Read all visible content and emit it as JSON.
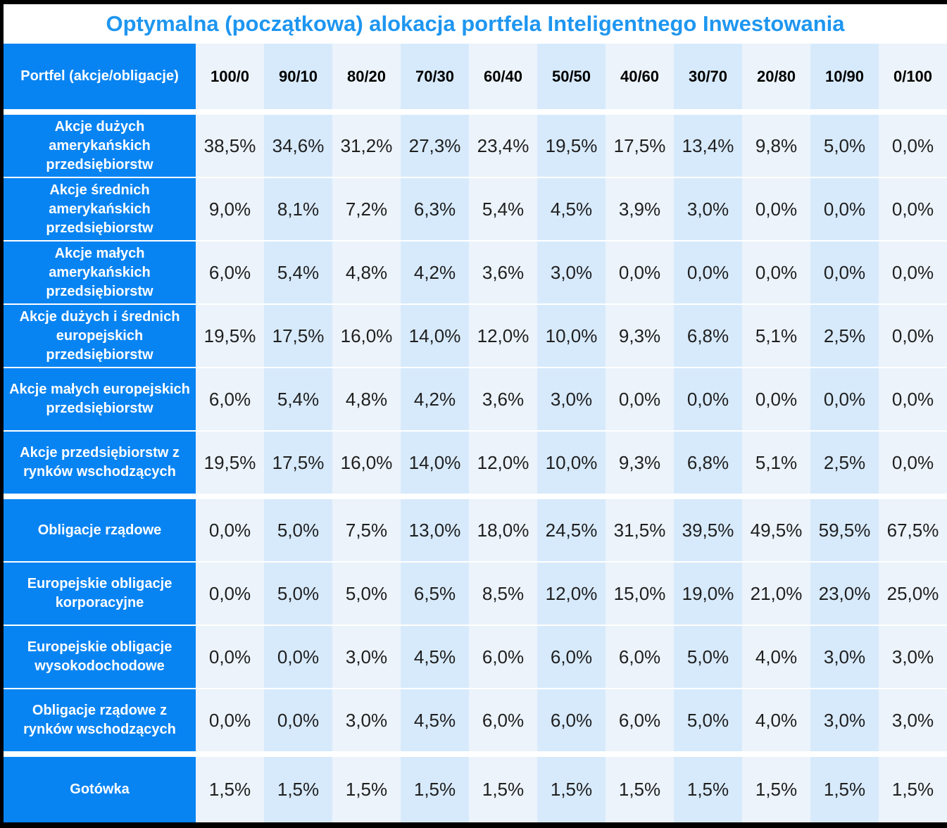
{
  "title": "Optymalna (początkowa) alokacja portfela Inteligentnego Inwestowania",
  "colors": {
    "title_text": "#1e96f0",
    "label_cell_bg": "#0884f2",
    "label_cell_text": "#ffffff",
    "column_light": "#ecf3fa",
    "column_blue": "#d7eafc",
    "value_text": "#1f1f1f",
    "border": "#000000"
  },
  "chart_data": {
    "type": "table",
    "title": "Optymalna (początkowa) alokacja portfela Inteligentnego Inwestowania",
    "corner_label": "Portfel (akcje/obligacje)",
    "columns": [
      "100/0",
      "90/10",
      "80/20",
      "70/30",
      "60/40",
      "50/50",
      "40/60",
      "30/70",
      "20/80",
      "10/90",
      "0/100"
    ],
    "groups": [
      {
        "name": "akcje",
        "rows": [
          {
            "label": "Akcje dużych amerykańskich przedsiębiorstw",
            "values": [
              "38,5%",
              "34,6%",
              "31,2%",
              "27,3%",
              "23,4%",
              "19,5%",
              "17,5%",
              "13,4%",
              "9,8%",
              "5,0%",
              "0,0%"
            ]
          },
          {
            "label": "Akcje średnich amerykańskich przedsiębiorstw",
            "values": [
              "9,0%",
              "8,1%",
              "7,2%",
              "6,3%",
              "5,4%",
              "4,5%",
              "3,9%",
              "3,0%",
              "0,0%",
              "0,0%",
              "0,0%"
            ]
          },
          {
            "label": "Akcje małych amerykańskich przedsiębiorstw",
            "values": [
              "6,0%",
              "5,4%",
              "4,8%",
              "4,2%",
              "3,6%",
              "3,0%",
              "0,0%",
              "0,0%",
              "0,0%",
              "0,0%",
              "0,0%"
            ]
          },
          {
            "label": "Akcje dużych i średnich europejskich przedsiębiorstw",
            "values": [
              "19,5%",
              "17,5%",
              "16,0%",
              "14,0%",
              "12,0%",
              "10,0%",
              "9,3%",
              "6,8%",
              "5,1%",
              "2,5%",
              "0,0%"
            ]
          },
          {
            "label": "Akcje małych europejskich przedsiębiorstw",
            "values": [
              "6,0%",
              "5,4%",
              "4,8%",
              "4,2%",
              "3,6%",
              "3,0%",
              "0,0%",
              "0,0%",
              "0,0%",
              "0,0%",
              "0,0%"
            ]
          },
          {
            "label": "Akcje przedsiębiorstw z rynków wschodzących",
            "values": [
              "19,5%",
              "17,5%",
              "16,0%",
              "14,0%",
              "12,0%",
              "10,0%",
              "9,3%",
              "6,8%",
              "5,1%",
              "2,5%",
              "0,0%"
            ]
          }
        ]
      },
      {
        "name": "obligacje",
        "rows": [
          {
            "label": "Obligacje rządowe",
            "values": [
              "0,0%",
              "5,0%",
              "7,5%",
              "13,0%",
              "18,0%",
              "24,5%",
              "31,5%",
              "39,5%",
              "49,5%",
              "59,5%",
              "67,5%"
            ]
          },
          {
            "label": "Europejskie obligacje korporacyjne",
            "values": [
              "0,0%",
              "5,0%",
              "5,0%",
              "6,5%",
              "8,5%",
              "12,0%",
              "15,0%",
              "19,0%",
              "21,0%",
              "23,0%",
              "25,0%"
            ]
          },
          {
            "label": "Europejskie obligacje wysokodochodowe",
            "values": [
              "0,0%",
              "0,0%",
              "3,0%",
              "4,5%",
              "6,0%",
              "6,0%",
              "6,0%",
              "5,0%",
              "4,0%",
              "3,0%",
              "3,0%"
            ]
          },
          {
            "label": "Obligacje rządowe z rynków wschodzących",
            "values": [
              "0,0%",
              "0,0%",
              "3,0%",
              "4,5%",
              "6,0%",
              "6,0%",
              "6,0%",
              "5,0%",
              "4,0%",
              "3,0%",
              "3,0%"
            ]
          }
        ]
      },
      {
        "name": "gotowka",
        "rows": [
          {
            "label": "Gotówka",
            "values": [
              "1,5%",
              "1,5%",
              "1,5%",
              "1,5%",
              "1,5%",
              "1,5%",
              "1,5%",
              "1,5%",
              "1,5%",
              "1,5%",
              "1,5%"
            ]
          }
        ]
      }
    ]
  }
}
